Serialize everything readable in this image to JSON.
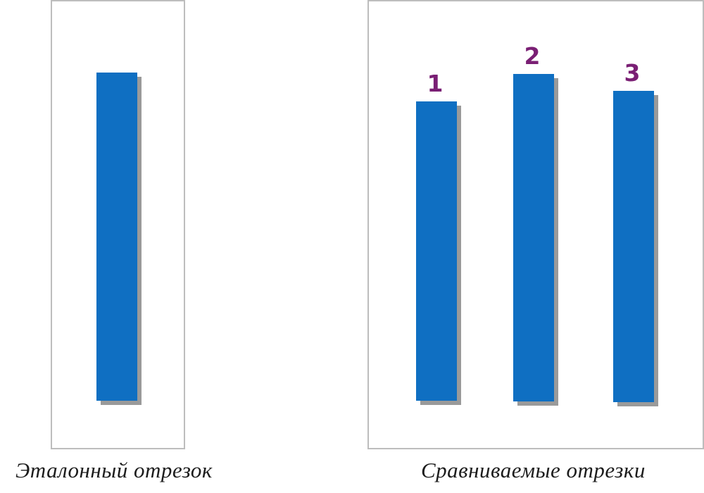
{
  "captions": {
    "reference": "Эталонный отрезок",
    "compared": "Сравниваемые отрезки"
  },
  "segments": {
    "reference": {
      "length": 466
    },
    "compared": [
      {
        "label": "1",
        "length": 425
      },
      {
        "label": "2",
        "length": 465
      },
      {
        "label": "3",
        "length": 442
      }
    ]
  },
  "colors": {
    "segment": "#0f6fc2",
    "shadow": "#9a9a9a",
    "label": "#7a1f74",
    "frame": "#bdbdbd"
  }
}
